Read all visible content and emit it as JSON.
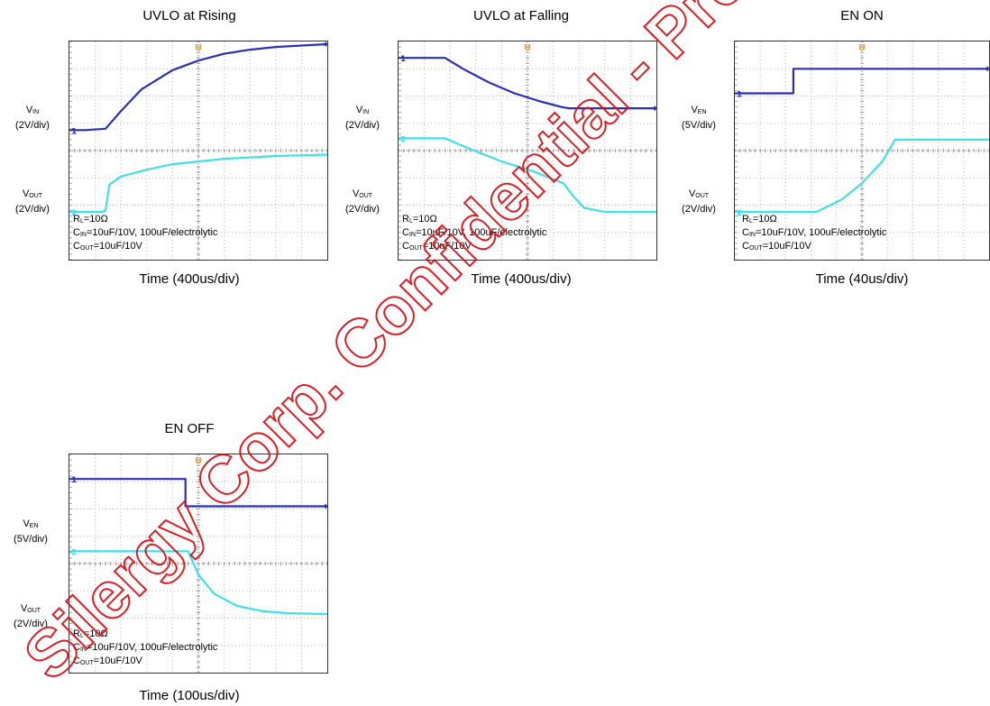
{
  "chart_data": [
    {
      "type": "line",
      "title": "UVLO at Rising",
      "xlabel": "Time (400us/div)",
      "series": [
        {
          "name": "V_IN",
          "label_main": "V",
          "label_sub": "IN",
          "scale": "(2V/div)",
          "color": "#2b2fb5",
          "marker": "1",
          "x": [
            0,
            0.6,
            1.4,
            2,
            2.8,
            4,
            5,
            6,
            7,
            8,
            9,
            10
          ],
          "y": [
            0.75,
            0.75,
            0.8,
            1.45,
            2.25,
            2.95,
            3.3,
            3.55,
            3.7,
            3.8,
            3.85,
            3.9
          ]
        },
        {
          "name": "V_OUT",
          "label_main": "V",
          "label_sub": "OUT",
          "scale": "(2V/div)",
          "color": "#3fe0e8",
          "marker": "2",
          "x": [
            0,
            1.25,
            1.4,
            1.55,
            2,
            3,
            4,
            5,
            6,
            7,
            8,
            10
          ],
          "y": [
            -2.25,
            -2.25,
            -2.2,
            -1.25,
            -0.95,
            -0.7,
            -0.5,
            -0.4,
            -0.3,
            -0.25,
            -0.2,
            -0.15
          ]
        }
      ],
      "conditions": [
        {
          "pre": "R",
          "sub": "L",
          "post": "=10Ω"
        },
        {
          "pre": "C",
          "sub": "IN",
          "post": "=10uF/10V, 100uF/electrolytic"
        },
        {
          "pre": "C",
          "sub": "OUT",
          "post": "=10uF/10V"
        }
      ]
    },
    {
      "type": "line",
      "title": "UVLO at Falling",
      "xlabel": "Time (400us/div)",
      "series": [
        {
          "name": "V_IN",
          "label_main": "V",
          "label_sub": "IN",
          "scale": "(2V/div)",
          "color": "#2b2fb5",
          "marker": "1",
          "x": [
            0,
            1.8,
            2.5,
            3.5,
            4.5,
            5.5,
            6.3,
            6.6,
            8,
            10
          ],
          "y": [
            3.4,
            3.4,
            3.0,
            2.5,
            2.1,
            1.8,
            1.6,
            1.55,
            1.55,
            1.55
          ]
        },
        {
          "name": "V_OUT",
          "label_main": "V",
          "label_sub": "OUT",
          "scale": "(2V/div)",
          "color": "#3fe0e8",
          "marker": "2",
          "x": [
            0,
            1.8,
            2.8,
            4,
            5.2,
            6.4,
            6.8,
            7.2,
            8,
            10
          ],
          "y": [
            0.45,
            0.45,
            0.05,
            -0.4,
            -0.75,
            -1.2,
            -1.7,
            -2.1,
            -2.25,
            -2.25
          ]
        }
      ],
      "conditions": [
        {
          "pre": "R",
          "sub": "L",
          "post": "=10Ω"
        },
        {
          "pre": "C",
          "sub": "IN",
          "post": "=10uF/10V, 100uF/electrolytic"
        },
        {
          "pre": "C",
          "sub": "OUT",
          "post": "=10uF/10V"
        }
      ]
    },
    {
      "type": "line",
      "title": "EN ON",
      "xlabel": "Time (40us/div)",
      "series": [
        {
          "name": "V_EN",
          "label_main": "V",
          "label_sub": "EN",
          "scale": "(5V/div)",
          "color": "#2b2fb5",
          "marker": "1",
          "x": [
            0,
            2.3,
            2.3,
            10
          ],
          "y": [
            2.1,
            2.1,
            3.0,
            3.0
          ]
        },
        {
          "name": "V_OUT",
          "label_main": "V",
          "label_sub": "OUT",
          "scale": "(2V/div)",
          "color": "#3fe0e8",
          "marker": "2",
          "x": [
            0,
            3.2,
            4.2,
            5,
            5.8,
            6.3,
            10
          ],
          "y": [
            -2.25,
            -2.25,
            -1.8,
            -1.2,
            -0.4,
            0.4,
            0.4
          ]
        }
      ],
      "conditions": [
        {
          "pre": "R",
          "sub": "L",
          "post": "=10Ω"
        },
        {
          "pre": "C",
          "sub": "IN",
          "post": "=10uF/10V, 100uF/electrolytic"
        },
        {
          "pre": "C",
          "sub": "OUT",
          "post": "=10uF/10V"
        }
      ]
    },
    {
      "type": "line",
      "title": "EN OFF",
      "xlabel": "Time (100us/div)",
      "series": [
        {
          "name": "V_EN",
          "label_main": "V",
          "label_sub": "EN",
          "scale": "(5V/div)",
          "color": "#2b2fb5",
          "marker": "1",
          "x": [
            0,
            4.5,
            4.5,
            10
          ],
          "y": [
            3.1,
            3.1,
            2.1,
            2.1
          ]
        },
        {
          "name": "V_OUT",
          "label_main": "V",
          "label_sub": "OUT",
          "scale": "(2V/div)",
          "color": "#3fe0e8",
          "marker": "2",
          "x": [
            0,
            4.6,
            5,
            5.6,
            6.5,
            7.5,
            8.5,
            10
          ],
          "y": [
            0.45,
            0.45,
            -0.4,
            -1.1,
            -1.55,
            -1.75,
            -1.82,
            -1.85
          ]
        }
      ],
      "conditions": [
        {
          "pre": "R",
          "sub": "L",
          "post": "=10Ω"
        },
        {
          "pre": "C",
          "sub": "IN",
          "post": "=10uF/10V, 100uF/electrolytic"
        },
        {
          "pre": "C",
          "sub": "OUT",
          "post": "=10uF/10V"
        }
      ]
    }
  ],
  "grid": {
    "x_div": 10,
    "y_div": 8
  },
  "colors": {
    "grid": "#b8b8b8",
    "trigger": "#e8a23a",
    "watermark": "#d7121a",
    "frame": "#333333"
  },
  "trigger_marker": "U",
  "watermark_text": "Silergy Corp. Confidential - Prepared"
}
